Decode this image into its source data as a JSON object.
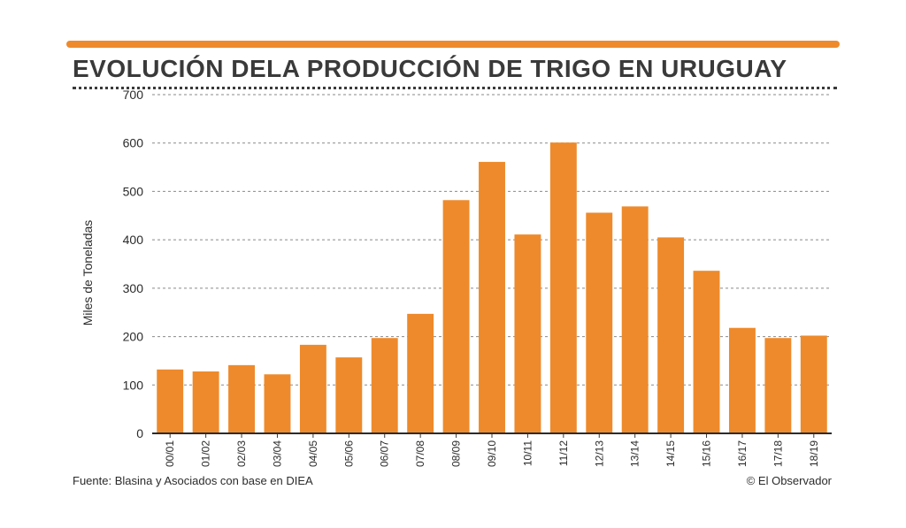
{
  "header": {
    "title": "EVOLUCIÓN DELA PRODUCCIÓN DE TRIGO EN URUGUAY"
  },
  "footer": {
    "source": "Fuente: Blasina y Asociados con base en DIEA",
    "credit": "© El Observador"
  },
  "colors": {
    "accent": "#ee8a2b",
    "bar": "#ee8a2b",
    "text": "#3a3a3a"
  },
  "chart_data": {
    "type": "bar",
    "title": "EVOLUCIÓN DELA PRODUCCIÓN DE TRIGO EN URUGUAY",
    "xlabel": "",
    "ylabel": "Miles de Toneladas",
    "ylim": [
      0,
      700
    ],
    "yticks": [
      0,
      100,
      200,
      300,
      400,
      500,
      600,
      700
    ],
    "grid": true,
    "categories": [
      "00/01",
      "01/02",
      "02/03",
      "03/04",
      "04/05",
      "05/06",
      "06/07",
      "07/08",
      "08/09",
      "09/10",
      "10/11",
      "11/12",
      "12/13",
      "13/14",
      "14/15",
      "15/16",
      "16/17",
      "17/18",
      "18/19"
    ],
    "values": [
      132,
      128,
      141,
      122,
      183,
      157,
      197,
      247,
      482,
      561,
      411,
      601,
      456,
      469,
      405,
      336,
      218,
      197,
      202
    ]
  }
}
